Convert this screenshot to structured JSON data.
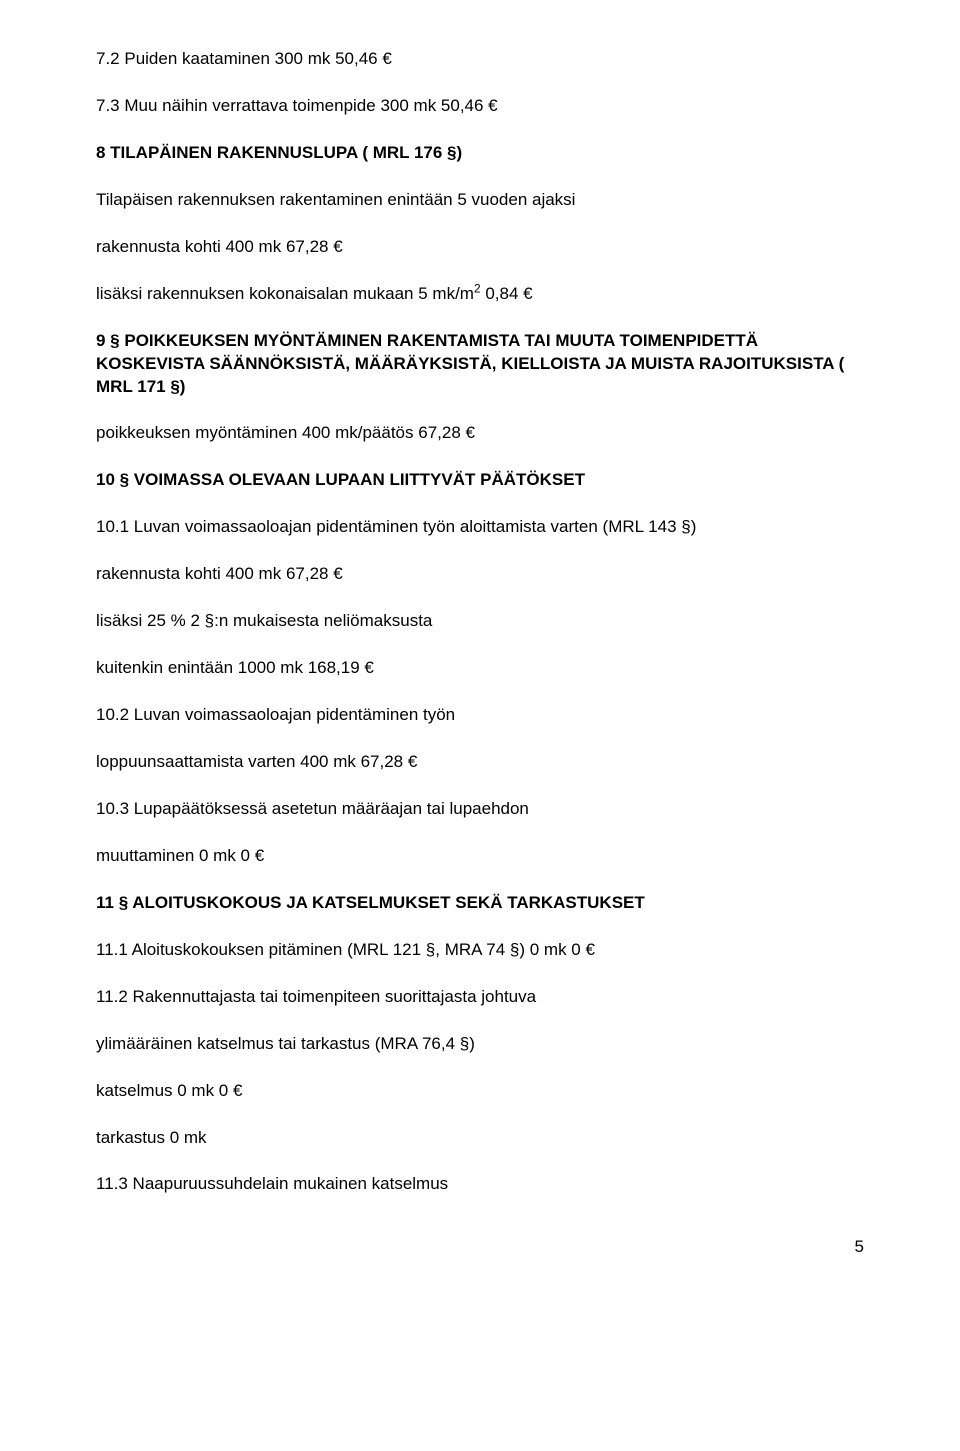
{
  "p7_2": "7.2 Puiden kaataminen 300 mk 50,46 €",
  "p7_3": "7.3 Muu näihin verrattava toimenpide 300 mk 50,46 €",
  "h8": "8 TILAPÄINEN RAKENNUSLUPA ( MRL 176 §)",
  "p8_a": "Tilapäisen rakennuksen rakentaminen enintään 5 vuoden ajaksi",
  "p8_b": "rakennusta kohti 400 mk 67,28 €",
  "p8_c_pre": "lisäksi rakennuksen kokonaisalan mukaan 5 mk/m",
  "p8_c_sup": "2",
  "p8_c_post": " 0,84 €",
  "h9": "9 § POIKKEUKSEN MYÖNTÄMINEN RAKENTAMISTA TAI MUUTA TOIMENPIDETTÄ KOSKEVISTA SÄÄNNÖKSISTÄ, MÄÄRÄYKSISTÄ, KIELLOISTA JA MUISTA RAJOITUKSISTA ( MRL 171 §)",
  "p9_a": "poikkeuksen myöntäminen 400 mk/päätös 67,28 €",
  "h10": "10 § VOIMASSA OLEVAAN LUPAAN LIITTYVÄT PÄÄTÖKSET",
  "p10_1": "10.1 Luvan voimassaoloajan pidentäminen työn aloittamista varten (MRL 143 §)",
  "p10_1a": "rakennusta kohti 400 mk 67,28 €",
  "p10_1b": "lisäksi 25 % 2 §:n mukaisesta neliömaksusta",
  "p10_1c": "kuitenkin enintään 1000 mk 168,19 €",
  "p10_2a": "10.2 Luvan voimassaoloajan pidentäminen työn",
  "p10_2b": "loppuunsaattamista varten 400 mk 67,28 €",
  "p10_3a": "10.3 Lupapäätöksessä asetetun määräajan tai lupaehdon",
  "p10_3b": "muuttaminen 0 mk 0 €",
  "h11": "11 § ALOITUSKOKOUS JA KATSELMUKSET SEKÄ TARKASTUKSET",
  "p11_1": "11.1 Aloituskokouksen pitäminen (MRL 121 §, MRA 74 §) 0 mk 0 €",
  "p11_2a": "11.2 Rakennuttajasta tai toimenpiteen suorittajasta johtuva",
  "p11_2b": "ylimääräinen katselmus tai tarkastus (MRA 76,4 §)",
  "p11_2c": "katselmus 0 mk 0 €",
  "p11_2d": "tarkastus 0 mk",
  "p11_3": "11.3 Naapuruussuhdelain mukainen katselmus",
  "page_number": "5"
}
